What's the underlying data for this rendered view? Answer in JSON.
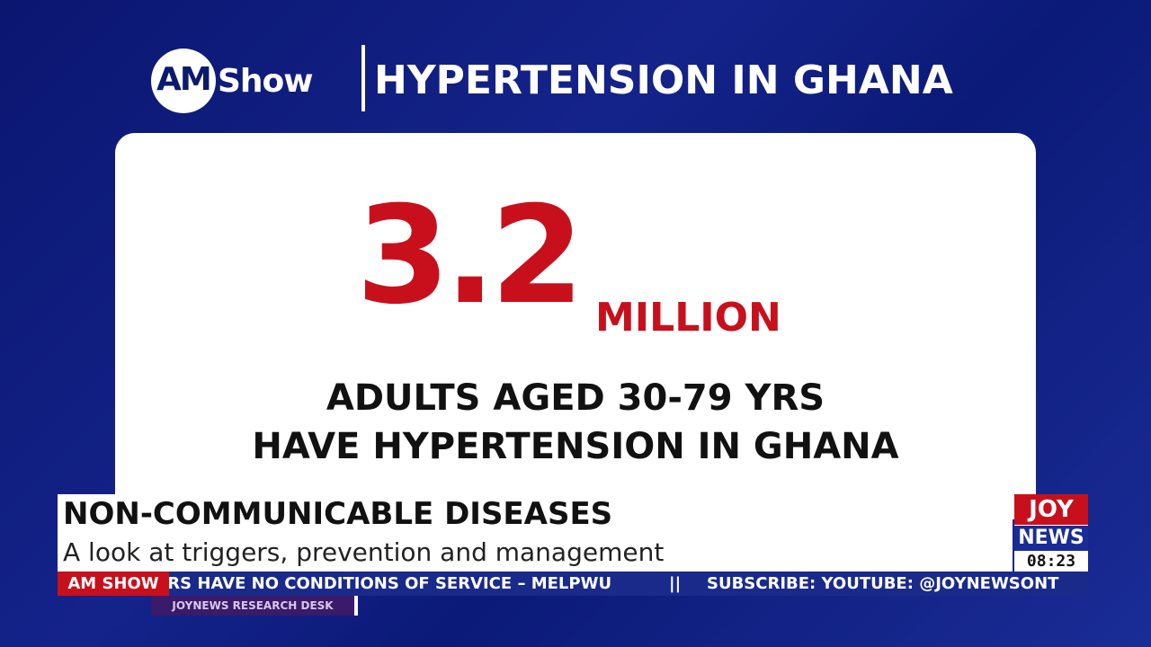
{
  "header": {
    "logo_am": "AM",
    "logo_show": "Show",
    "title": "HYPERTENSION IN GHANA"
  },
  "card": {
    "figure": "3.2",
    "unit": "MILLION",
    "line1": "ADULTS AGED 30-79 YRS",
    "line2": "HAVE HYPERTENSION IN GHANA"
  },
  "lower_third": {
    "headline": "NON-COMMUNICABLE DISEASES",
    "subline": "A look at triggers, prevention and management"
  },
  "ticker": {
    "label": "AM SHOW",
    "items": [
      "ERS HAVE NO CONDITIONS OF SERVICE – MELPWU",
      "||",
      "SUBSCRIBE: YOUTUBE: @JOYNEWSONT"
    ]
  },
  "source_tag": "JOYNEWS RESEARCH DESK",
  "channel": {
    "joy": "JOY",
    "news": "NEWS",
    "clock": "08:23"
  }
}
